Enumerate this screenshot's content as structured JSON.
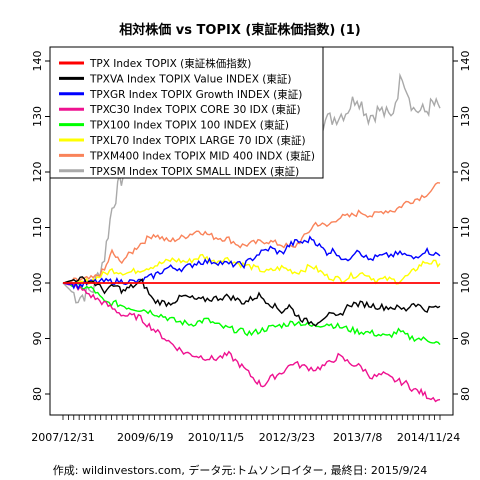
{
  "chart_data": {
    "type": "line",
    "title": "相対株価 vs TOPIX (東証株価指数) (1)",
    "source": "作成: wildinvestors.com, データ元:トムソンロイター, 最終日: 2015/9/24",
    "x_tick_labels": [
      "2007/12/31",
      "2009/6/19",
      "2010/11/5",
      "2012/3/23",
      "2013/7/8",
      "2014/11/24"
    ],
    "x_tick_positions": [
      0,
      0.2182,
      0.4061,
      0.5939,
      0.7818,
      0.9697
    ],
    "ylim": [
      77,
      140
    ],
    "y_ticks": [
      80,
      90,
      100,
      110,
      120,
      130,
      140
    ],
    "grid": false,
    "legend_position": "top-left",
    "series": [
      {
        "name": "TPX Index TOPIX (東証株価指数)",
        "color": "#ff0000",
        "points": [
          [
            0,
            100
          ],
          [
            1,
            100
          ]
        ]
      },
      {
        "name": "TPXVA Index TOPIX Value INDEX (東証)",
        "color": "#000000",
        "points": [
          [
            0,
            100
          ],
          [
            0.04,
            100.8
          ],
          [
            0.08,
            100.2
          ],
          [
            0.11,
            98.6
          ],
          [
            0.14,
            99.5
          ],
          [
            0.16,
            98.5
          ],
          [
            0.18,
            99.3
          ],
          [
            0.21,
            100.2
          ],
          [
            0.24,
            96.8
          ],
          [
            0.28,
            96.3
          ],
          [
            0.32,
            97.6
          ],
          [
            0.36,
            96.9
          ],
          [
            0.4,
            97.2
          ],
          [
            0.44,
            97.6
          ],
          [
            0.48,
            96.5
          ],
          [
            0.52,
            97.8
          ],
          [
            0.55,
            96.3
          ],
          [
            0.58,
            94.9
          ],
          [
            0.6,
            95.9
          ],
          [
            0.62,
            94.2
          ],
          [
            0.64,
            93.2
          ],
          [
            0.67,
            92.8
          ],
          [
            0.7,
            94.3
          ],
          [
            0.73,
            93.8
          ],
          [
            0.76,
            96.2
          ],
          [
            0.8,
            96.2
          ],
          [
            0.84,
            95.7
          ],
          [
            0.88,
            95.6
          ],
          [
            0.91,
            95.2
          ],
          [
            0.93,
            96.5
          ],
          [
            0.96,
            95.2
          ],
          [
            1.0,
            95.8
          ]
        ]
      },
      {
        "name": "TPXGR Index TOPIX Growth INDEX (東証)",
        "color": "#0000ff",
        "points": [
          [
            0,
            100
          ],
          [
            0.04,
            99.5
          ],
          [
            0.08,
            100.2
          ],
          [
            0.12,
            100.3
          ],
          [
            0.16,
            100.3
          ],
          [
            0.2,
            100.2
          ],
          [
            0.24,
            101.3
          ],
          [
            0.28,
            102.8
          ],
          [
            0.32,
            102.6
          ],
          [
            0.36,
            103.8
          ],
          [
            0.4,
            103.9
          ],
          [
            0.44,
            103.4
          ],
          [
            0.48,
            103.3
          ],
          [
            0.52,
            105.3
          ],
          [
            0.55,
            106.3
          ],
          [
            0.58,
            105.3
          ],
          [
            0.6,
            106.8
          ],
          [
            0.62,
            107.5
          ],
          [
            0.64,
            107.3
          ],
          [
            0.66,
            108.1
          ],
          [
            0.68,
            106.7
          ],
          [
            0.7,
            105.5
          ],
          [
            0.72,
            105.9
          ],
          [
            0.75,
            103.8
          ],
          [
            0.78,
            106.2
          ],
          [
            0.81,
            104.2
          ],
          [
            0.84,
            104.8
          ],
          [
            0.87,
            105.0
          ],
          [
            0.9,
            105.3
          ],
          [
            0.93,
            104.4
          ],
          [
            0.96,
            105.9
          ],
          [
            1.0,
            104.9
          ]
        ]
      },
      {
        "name": "TPXC30 Index TOPIX CORE 30 IDX (東証)",
        "color": "#ee1290",
        "points": [
          [
            0,
            100
          ],
          [
            0.04,
            99.2
          ],
          [
            0.08,
            97.5
          ],
          [
            0.12,
            95.9
          ],
          [
            0.16,
            94.2
          ],
          [
            0.2,
            93.9
          ],
          [
            0.24,
            91.7
          ],
          [
            0.28,
            89.5
          ],
          [
            0.32,
            87.5
          ],
          [
            0.36,
            86.8
          ],
          [
            0.4,
            86.3
          ],
          [
            0.44,
            87.1
          ],
          [
            0.48,
            84.6
          ],
          [
            0.51,
            82.5
          ],
          [
            0.53,
            81.5
          ],
          [
            0.55,
            82.8
          ],
          [
            0.58,
            83.9
          ],
          [
            0.61,
            85.6
          ],
          [
            0.64,
            84.9
          ],
          [
            0.67,
            84.5
          ],
          [
            0.7,
            85.3
          ],
          [
            0.73,
            86.8
          ],
          [
            0.76,
            85.6
          ],
          [
            0.79,
            84.9
          ],
          [
            0.82,
            83.0
          ],
          [
            0.85,
            83.5
          ],
          [
            0.88,
            82.5
          ],
          [
            0.91,
            81.9
          ],
          [
            0.93,
            80.8
          ],
          [
            0.95,
            80.3
          ],
          [
            0.97,
            79.5
          ],
          [
            1.0,
            79.0
          ]
        ]
      },
      {
        "name": "TPX100 Index TOPIX 100 INDEX (東証)",
        "color": "#00ff00",
        "points": [
          [
            0,
            100
          ],
          [
            0.04,
            99.4
          ],
          [
            0.08,
            98.9
          ],
          [
            0.11,
            96.5
          ],
          [
            0.14,
            96.3
          ],
          [
            0.18,
            95.5
          ],
          [
            0.22,
            95.1
          ],
          [
            0.26,
            94.2
          ],
          [
            0.3,
            93.1
          ],
          [
            0.34,
            92.6
          ],
          [
            0.38,
            93.4
          ],
          [
            0.42,
            92.1
          ],
          [
            0.46,
            91.5
          ],
          [
            0.5,
            90.9
          ],
          [
            0.54,
            91.8
          ],
          [
            0.58,
            92.4
          ],
          [
            0.62,
            93.0
          ],
          [
            0.66,
            92.2
          ],
          [
            0.7,
            92.7
          ],
          [
            0.74,
            92.0
          ],
          [
            0.78,
            91.3
          ],
          [
            0.82,
            91.0
          ],
          [
            0.86,
            90.3
          ],
          [
            0.89,
            91.3
          ],
          [
            0.92,
            90.2
          ],
          [
            0.95,
            89.9
          ],
          [
            0.98,
            89.6
          ],
          [
            1.0,
            88.9
          ]
        ]
      },
      {
        "name": "TPXL70 Index TOPIX LARGE 70 IDX (東証)",
        "color": "#ffff00",
        "points": [
          [
            0,
            100
          ],
          [
            0.04,
            99.8
          ],
          [
            0.08,
            100.6
          ],
          [
            0.1,
            101.3
          ],
          [
            0.13,
            102.3
          ],
          [
            0.17,
            101.8
          ],
          [
            0.21,
            102.5
          ],
          [
            0.25,
            103.3
          ],
          [
            0.29,
            104.2
          ],
          [
            0.33,
            103.8
          ],
          [
            0.37,
            104.9
          ],
          [
            0.4,
            103.8
          ],
          [
            0.43,
            104.5
          ],
          [
            0.46,
            103.6
          ],
          [
            0.5,
            102.9
          ],
          [
            0.54,
            102.0
          ],
          [
            0.58,
            102.8
          ],
          [
            0.62,
            101.9
          ],
          [
            0.66,
            103.1
          ],
          [
            0.7,
            101.2
          ],
          [
            0.74,
            100.6
          ],
          [
            0.77,
            101.4
          ],
          [
            0.8,
            101.8
          ],
          [
            0.83,
            100.5
          ],
          [
            0.86,
            100.7
          ],
          [
            0.89,
            100.3
          ],
          [
            0.92,
            101.5
          ],
          [
            0.94,
            102.8
          ],
          [
            0.96,
            103.8
          ],
          [
            1.0,
            103.5
          ]
        ]
      },
      {
        "name": "TPXM400 Index TOPIX MID 400 INDX (東証)",
        "color": "#f9835a",
        "points": [
          [
            0,
            100
          ],
          [
            0.04,
            100.5
          ],
          [
            0.08,
            100.8
          ],
          [
            0.11,
            102.3
          ],
          [
            0.13,
            105.6
          ],
          [
            0.15,
            103.8
          ],
          [
            0.18,
            105.3
          ],
          [
            0.2,
            106.8
          ],
          [
            0.24,
            108.8
          ],
          [
            0.28,
            107.5
          ],
          [
            0.32,
            108.3
          ],
          [
            0.36,
            109.5
          ],
          [
            0.4,
            108.3
          ],
          [
            0.44,
            107.9
          ],
          [
            0.47,
            106.7
          ],
          [
            0.5,
            107.1
          ],
          [
            0.54,
            107.6
          ],
          [
            0.58,
            106.9
          ],
          [
            0.61,
            106.3
          ],
          [
            0.64,
            108.3
          ],
          [
            0.67,
            110.8
          ],
          [
            0.7,
            110.2
          ],
          [
            0.73,
            111.8
          ],
          [
            0.76,
            112.0
          ],
          [
            0.79,
            112.8
          ],
          [
            0.82,
            112.1
          ],
          [
            0.85,
            113.0
          ],
          [
            0.88,
            113.1
          ],
          [
            0.91,
            114.5
          ],
          [
            0.94,
            115.2
          ],
          [
            0.97,
            116.3
          ],
          [
            1.0,
            118.0
          ]
        ]
      },
      {
        "name": "TPXSM Index TOPIX SMALL INDEX (東証)",
        "color": "#a9a9a9",
        "points": [
          [
            0,
            100
          ],
          [
            0.04,
            97.3
          ],
          [
            0.08,
            99.0
          ],
          [
            0.11,
            104.8
          ],
          [
            0.13,
            113.5
          ],
          [
            0.15,
            118.0
          ],
          [
            0.17,
            121.0
          ],
          [
            0.19,
            122.2
          ],
          [
            0.21,
            123.8
          ],
          [
            0.24,
            125.2
          ],
          [
            0.27,
            124.1
          ],
          [
            0.3,
            126.3
          ],
          [
            0.33,
            125.0
          ],
          [
            0.36,
            124.4
          ],
          [
            0.39,
            123.5
          ],
          [
            0.42,
            122.1
          ],
          [
            0.45,
            123.5
          ],
          [
            0.48,
            122.0
          ],
          [
            0.51,
            121.4
          ],
          [
            0.54,
            122.9
          ],
          [
            0.57,
            123.2
          ],
          [
            0.6,
            124.9
          ],
          [
            0.63,
            126.9
          ],
          [
            0.66,
            128.2
          ],
          [
            0.69,
            129.1
          ],
          [
            0.72,
            129.8
          ],
          [
            0.75,
            130.9
          ],
          [
            0.78,
            133.8
          ],
          [
            0.81,
            130.0
          ],
          [
            0.84,
            131.2
          ],
          [
            0.87,
            129.7
          ],
          [
            0.9,
            137.8
          ],
          [
            0.93,
            131.3
          ],
          [
            0.96,
            130.8
          ],
          [
            0.98,
            132.2
          ],
          [
            1.0,
            131.5
          ]
        ]
      }
    ]
  }
}
